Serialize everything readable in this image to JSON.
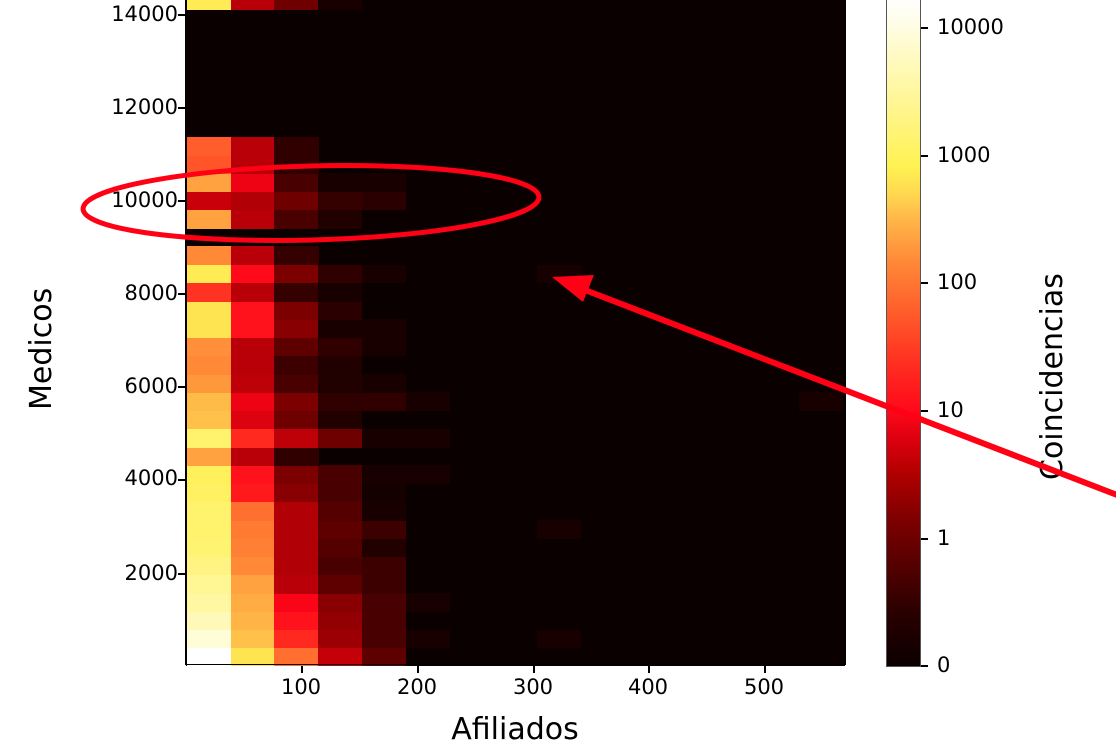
{
  "chart_data": {
    "type": "heatmap",
    "title": "",
    "xlabel": "Afiliados",
    "ylabel": "Medicos",
    "colorbar_label": "Coincidencias",
    "colorbar_scale": "log (symlog, 0 at bottom)",
    "colormap": "hot",
    "colorbar_ticks": [
      "0",
      "1",
      "10",
      "100",
      "1000",
      "10000"
    ],
    "x_ticks": [
      100,
      200,
      300,
      400,
      500
    ],
    "y_ticks": [
      2000,
      4000,
      6000,
      8000,
      10000,
      12000,
      14000
    ],
    "xlim": [
      0,
      576
    ],
    "ylim": [
      0,
      14300
    ],
    "grid": false,
    "bin_width_x": 38.4,
    "bin_height_y": 390,
    "n_cols": 15,
    "rows_bottom_to_top": [
      [
        12000,
        900,
        150,
        14,
        3,
        0,
        0,
        0,
        0,
        0,
        0,
        0,
        0,
        0,
        0
      ],
      [
        6000,
        500,
        60,
        8,
        2,
        0.3,
        0,
        0,
        0.3,
        0,
        0,
        0,
        0,
        0,
        0
      ],
      [
        4000,
        400,
        40,
        7,
        2,
        0,
        0,
        0,
        0,
        0,
        0,
        0,
        0,
        0,
        0
      ],
      [
        3000,
        350,
        30,
        6,
        2,
        0.3,
        0,
        0,
        0,
        0,
        0,
        0,
        0,
        0,
        0
      ],
      [
        2500,
        300,
        12,
        3,
        1.5,
        0,
        0,
        0,
        0,
        0,
        0,
        0,
        0,
        0,
        0
      ],
      [
        2000,
        200,
        11,
        2,
        1.5,
        0,
        0,
        0,
        0,
        0,
        0,
        0,
        0,
        0,
        0
      ],
      [
        1600,
        180,
        11,
        2.5,
        0.5,
        0,
        0,
        0,
        0,
        0,
        0,
        0,
        0,
        0,
        0
      ],
      [
        1500,
        170,
        11,
        3,
        1.5,
        0,
        0,
        0,
        0.3,
        0,
        0,
        0,
        0,
        0,
        0
      ],
      [
        1500,
        150,
        11,
        2.5,
        0.3,
        0,
        0,
        0,
        0,
        0,
        0,
        0,
        0,
        0,
        0
      ],
      [
        1300,
        45,
        6,
        2,
        0.2,
        0,
        0,
        0,
        0,
        0,
        0,
        0,
        0,
        0,
        0
      ],
      [
        1200,
        40,
        5,
        2,
        0.3,
        0.3,
        0,
        0,
        0,
        0,
        0,
        0,
        0,
        0,
        0
      ],
      [
        300,
        12,
        1,
        0,
        0,
        0,
        0,
        0,
        0,
        0,
        0,
        0,
        0,
        0,
        0
      ],
      [
        1500,
        60,
        13,
        4,
        0.3,
        0.3,
        0,
        0,
        0,
        0,
        0,
        0,
        0,
        0,
        0
      ],
      [
        500,
        20,
        4,
        0.5,
        0,
        0,
        0,
        0,
        0,
        0,
        0,
        0,
        0,
        0,
        0
      ],
      [
        450,
        25,
        5,
        1,
        1,
        0.3,
        0,
        0,
        0,
        0,
        0,
        0,
        0,
        0,
        0.3
      ],
      [
        250,
        13,
        2,
        0.5,
        0.3,
        0,
        0,
        0,
        0,
        0,
        0,
        0,
        0,
        0,
        0
      ],
      [
        200,
        12,
        1.5,
        0.5,
        0,
        0,
        0,
        0,
        0,
        0,
        0,
        0,
        0,
        0,
        0
      ],
      [
        220,
        12,
        3,
        1,
        0.3,
        0,
        0,
        0,
        0,
        0,
        0,
        0,
        0,
        0,
        0
      ],
      [
        900,
        40,
        6,
        0.3,
        0.3,
        0,
        0,
        0,
        0,
        0,
        0,
        0,
        0,
        0,
        0
      ],
      [
        900,
        40,
        5,
        0.8,
        0,
        0,
        0,
        0,
        0,
        0,
        0,
        0,
        0,
        0,
        0
      ],
      [
        70,
        12,
        1.2,
        0.3,
        0,
        0,
        0,
        0,
        0,
        0,
        0,
        0,
        0,
        0,
        0
      ],
      [
        1000,
        35,
        5,
        1,
        0.3,
        0,
        0,
        0,
        0.3,
        0,
        0,
        0,
        0,
        0,
        0
      ],
      [
        200,
        12,
        1.2,
        0,
        0,
        0,
        0,
        0,
        0,
        0,
        0,
        0,
        0,
        0,
        0
      ],
      [
        0,
        0,
        0,
        0,
        0,
        0,
        0,
        0,
        0,
        0,
        0,
        0,
        0,
        0,
        0
      ],
      [
        300,
        12,
        2,
        0.5,
        0,
        0,
        0,
        0,
        0,
        0,
        0,
        0,
        0,
        0,
        0
      ],
      [
        15,
        11,
        4,
        1.2,
        0.8,
        0,
        0,
        0,
        0,
        0,
        0,
        0,
        0,
        0,
        0
      ],
      [
        300,
        25,
        2,
        0.3,
        0.3,
        0,
        0,
        0,
        0,
        0,
        0,
        0,
        0,
        0,
        0
      ],
      [
        110,
        12,
        1,
        0,
        0,
        0,
        0,
        0,
        0,
        0,
        0,
        0,
        0,
        0,
        0
      ],
      [
        120,
        12,
        1,
        0,
        0,
        0,
        0,
        0,
        0,
        0,
        0,
        0,
        0,
        0,
        0
      ],
      [
        0,
        0,
        0,
        0,
        0,
        0,
        0,
        0,
        0,
        0,
        0,
        0,
        0,
        0,
        0
      ],
      [
        0,
        0,
        0,
        0,
        0,
        0,
        0,
        0,
        0,
        0,
        0,
        0,
        0,
        0,
        0
      ],
      [
        0,
        0,
        0,
        0,
        0,
        0,
        0,
        0,
        0,
        0,
        0,
        0,
        0,
        0,
        0
      ],
      [
        0,
        0,
        0,
        0,
        0,
        0,
        0,
        0,
        0,
        0,
        0,
        0,
        0,
        0,
        0
      ],
      [
        0,
        0,
        0,
        0,
        0,
        0,
        0,
        0,
        0,
        0,
        0,
        0,
        0,
        0,
        0
      ],
      [
        0,
        0,
        0,
        0,
        0,
        0,
        0,
        0,
        0,
        0,
        0,
        0,
        0,
        0,
        0
      ],
      [
        0,
        0,
        0,
        0,
        0,
        0,
        0,
        0,
        0,
        0,
        0,
        0,
        0,
        0,
        0
      ],
      [
        1000,
        12,
        4,
        0.3,
        0,
        0,
        0,
        0,
        0,
        0,
        0,
        0,
        0,
        0,
        0
      ]
    ],
    "annotations": [
      {
        "type": "ellipse",
        "color": "#ff0015",
        "note": "highlights band around Medicos ≈ 10000"
      },
      {
        "type": "arrow",
        "color": "#ff0015",
        "note": "points to isolated cell near Afiliados ≈ 320, Medicos ≈ 8500"
      }
    ]
  },
  "axis": {
    "x_tick_labels": [
      "100",
      "200",
      "300",
      "400",
      "500"
    ],
    "y_tick_labels": [
      "2000",
      "4000",
      "6000",
      "8000",
      "10000",
      "12000",
      "14000"
    ],
    "xlabel": "Afiliados",
    "ylabel": "Medicos"
  },
  "colorbar": {
    "label": "Coincidencias",
    "tick_labels": [
      "0",
      "1",
      "10",
      "100",
      "1000",
      "10000"
    ]
  },
  "colors": {
    "annotation": "#ff0015",
    "background": "#0b0000"
  }
}
